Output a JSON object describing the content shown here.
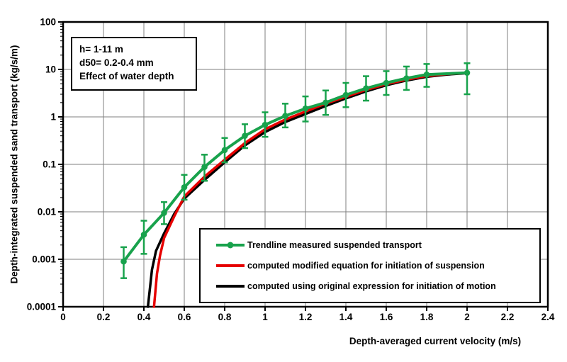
{
  "colors": {
    "background": "#ffffff",
    "grid": "#7f7f7f",
    "frame": "#000000",
    "trendline_green": "#18a24c",
    "computed_red": "#e60000",
    "computed_black": "#000000"
  },
  "annotation_box": {
    "lines": [
      "h= 1-11 m",
      "d50= 0.2-0.4 mm",
      "Effect of water depth"
    ]
  },
  "legend": {
    "items": [
      {
        "label": "Trendline measured suspended transport",
        "color": "#18a24c",
        "marker": true
      },
      {
        "label": "computed modified equation for initiation of suspension",
        "color": "#e60000",
        "marker": false
      },
      {
        "label": "computed using original expression for initiation of motion",
        "color": "#000000",
        "marker": false
      }
    ]
  },
  "chart_data": {
    "type": "line",
    "title": "",
    "xlabel": "Depth-averaged current velocity (m/s)",
    "ylabel": "Depth-integrated suspended sand transport (kg/s/m)",
    "x_range": [
      0,
      2.4
    ],
    "y_range_log": [
      0.0001,
      100
    ],
    "y_scale": "log",
    "grid": true,
    "legend_position": "inside-bottom",
    "x_ticks": [
      "0",
      "0.2",
      "0.4",
      "0.6",
      "0.8",
      "1",
      "1.2",
      "1.4",
      "1.6",
      "1.8",
      "2",
      "2.2",
      "2.4"
    ],
    "y_ticks": [
      "100",
      "10",
      "1",
      "0.1",
      "0.01",
      "0.001",
      "0.0001"
    ],
    "series": [
      {
        "name": "Trendline measured suspended transport",
        "color": "#18a24c",
        "marker": "circle",
        "points": [
          [
            0.3,
            0.0009
          ],
          [
            0.4,
            0.0033
          ],
          [
            0.5,
            0.0095
          ],
          [
            0.6,
            0.033
          ],
          [
            0.7,
            0.088
          ],
          [
            0.8,
            0.2
          ],
          [
            0.9,
            0.4
          ],
          [
            1.0,
            0.68
          ],
          [
            1.1,
            1.05
          ],
          [
            1.2,
            1.5
          ],
          [
            1.3,
            2.0
          ],
          [
            1.4,
            2.9
          ],
          [
            1.5,
            4.0
          ],
          [
            1.6,
            5.2
          ],
          [
            1.7,
            6.5
          ],
          [
            1.8,
            7.8
          ],
          [
            2.0,
            8.5
          ]
        ],
        "error_bars": [
          [
            0.3,
            0.0004,
            0.0018
          ],
          [
            0.4,
            0.0013,
            0.0065
          ],
          [
            0.5,
            0.0055,
            0.016
          ],
          [
            0.6,
            0.018,
            0.06
          ],
          [
            0.7,
            0.045,
            0.16
          ],
          [
            0.8,
            0.11,
            0.36
          ],
          [
            0.9,
            0.22,
            0.7
          ],
          [
            1.0,
            0.38,
            1.25
          ],
          [
            1.1,
            0.6,
            1.9
          ],
          [
            1.2,
            0.8,
            2.7
          ],
          [
            1.3,
            1.1,
            3.6
          ],
          [
            1.4,
            1.6,
            5.2
          ],
          [
            1.5,
            2.2,
            7.2
          ],
          [
            1.6,
            2.9,
            9.2
          ],
          [
            1.7,
            3.7,
            11.5
          ],
          [
            1.8,
            4.3,
            13.0
          ],
          [
            2.0,
            3.0,
            13.5
          ]
        ]
      },
      {
        "name": "computed modified equation for initiation of suspension",
        "color": "#e60000",
        "marker": "none",
        "points": [
          [
            0.45,
            0.0001
          ],
          [
            0.465,
            0.0005
          ],
          [
            0.48,
            0.0012
          ],
          [
            0.5,
            0.0028
          ],
          [
            0.55,
            0.008
          ],
          [
            0.6,
            0.021
          ],
          [
            0.7,
            0.055
          ],
          [
            0.8,
            0.125
          ],
          [
            0.9,
            0.28
          ],
          [
            1.0,
            0.55
          ],
          [
            1.1,
            0.88
          ],
          [
            1.2,
            1.3
          ],
          [
            1.3,
            1.9
          ],
          [
            1.4,
            2.65
          ],
          [
            1.5,
            3.7
          ],
          [
            1.6,
            4.9
          ],
          [
            1.7,
            6.1
          ],
          [
            1.8,
            7.3
          ],
          [
            1.9,
            8.0
          ],
          [
            2.0,
            8.5
          ]
        ]
      },
      {
        "name": "computed using original expression for initiation of motion",
        "color": "#000000",
        "marker": "none",
        "points": [
          [
            0.42,
            0.0001
          ],
          [
            0.44,
            0.0006
          ],
          [
            0.46,
            0.0015
          ],
          [
            0.5,
            0.0035
          ],
          [
            0.55,
            0.009
          ],
          [
            0.6,
            0.019
          ],
          [
            0.7,
            0.047
          ],
          [
            0.8,
            0.11
          ],
          [
            0.9,
            0.25
          ],
          [
            1.0,
            0.48
          ],
          [
            1.1,
            0.78
          ],
          [
            1.2,
            1.15
          ],
          [
            1.3,
            1.7
          ],
          [
            1.4,
            2.45
          ],
          [
            1.5,
            3.45
          ],
          [
            1.6,
            4.65
          ],
          [
            1.7,
            5.85
          ],
          [
            1.8,
            7.0
          ],
          [
            1.9,
            7.8
          ],
          [
            2.0,
            8.35
          ]
        ]
      }
    ]
  }
}
